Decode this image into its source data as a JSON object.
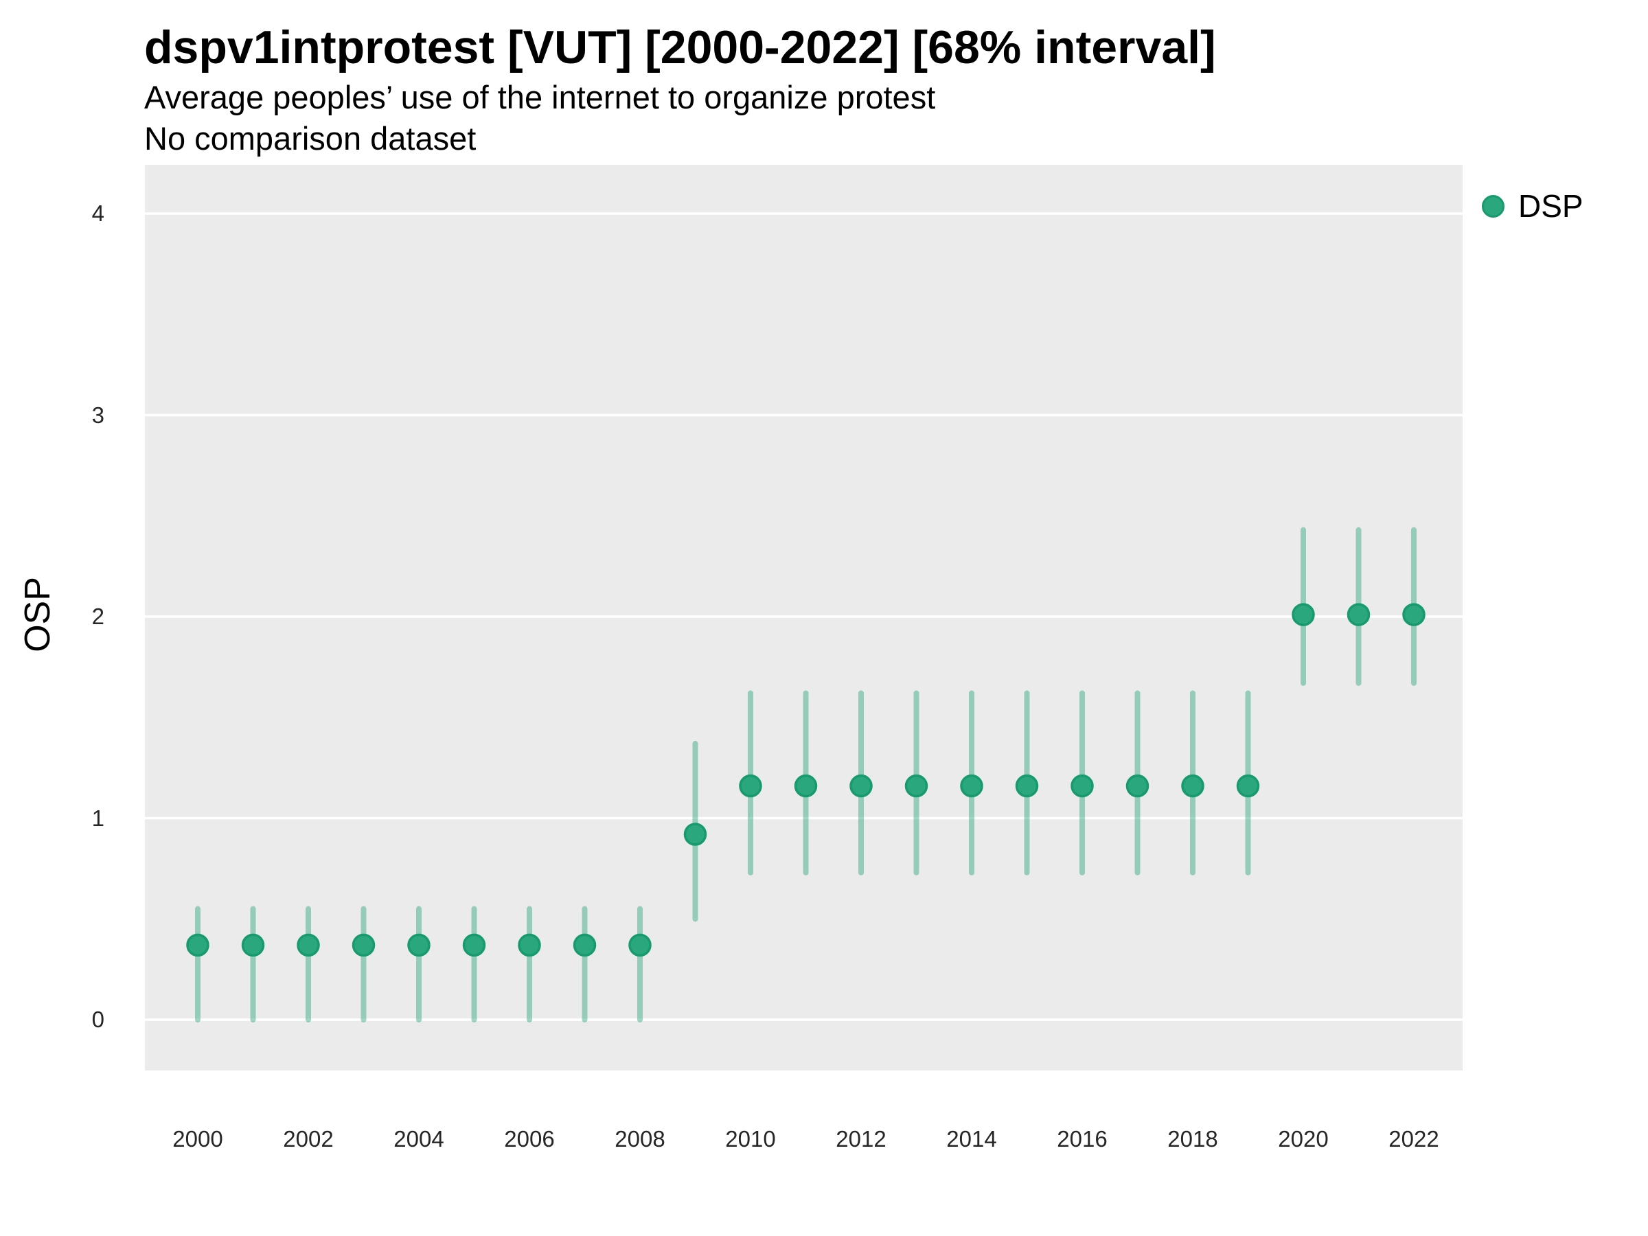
{
  "header": {
    "title": "dspv1intprotest [VUT] [2000-2022] [68% interval]",
    "subtitle": "Average peoples’ use of the internet to organize protest",
    "note": "No comparison dataset"
  },
  "axes": {
    "y_title": "OSP",
    "y_ticks": [
      "0",
      "1",
      "2",
      "3",
      "4"
    ],
    "x_ticks": [
      "2000",
      "2002",
      "2004",
      "2006",
      "2008",
      "2010",
      "2012",
      "2014",
      "2016",
      "2018",
      "2020",
      "2022"
    ]
  },
  "legend": {
    "items": [
      {
        "label": "DSP",
        "swatch": "circle-icon"
      }
    ]
  },
  "colors": {
    "point_fill": "#2AA77C",
    "point_stroke": "#189A6F",
    "interval_line": "rgba(42,167,124,0.45)",
    "panel_background": "#EBEBEB",
    "gridline": "#FFFFFF",
    "text": "#000000",
    "axis_text": "#262626"
  },
  "chart_data": {
    "type": "scatter",
    "mark": "pointrange",
    "title": "dspv1intprotest [VUT] [2000-2022] [68% interval]",
    "subtitle": "Average peoples’ use of the internet to organize protest",
    "annotation": "No comparison dataset",
    "xlabel": "",
    "ylabel": "OSP",
    "ylim": [
      -0.26,
      4.24
    ],
    "y_major_gridlines": [
      0,
      1,
      2,
      3,
      4
    ],
    "grid": "horizontal-major-white-on-gray",
    "legend_position": "right-top",
    "x": [
      2000,
      2001,
      2002,
      2003,
      2004,
      2005,
      2006,
      2007,
      2008,
      2009,
      2010,
      2011,
      2012,
      2013,
      2014,
      2015,
      2016,
      2017,
      2018,
      2019,
      2020,
      2021,
      2022
    ],
    "series": [
      {
        "name": "DSP",
        "estimate": [
          0.37,
          0.37,
          0.37,
          0.37,
          0.37,
          0.37,
          0.37,
          0.37,
          0.37,
          0.92,
          1.16,
          1.16,
          1.16,
          1.16,
          1.16,
          1.16,
          1.16,
          1.16,
          1.16,
          1.16,
          2.01,
          2.01,
          2.01
        ],
        "interval_68_low": [
          0.0,
          0.0,
          0.0,
          0.0,
          0.0,
          0.0,
          0.0,
          0.0,
          0.0,
          0.5,
          0.73,
          0.73,
          0.73,
          0.73,
          0.73,
          0.73,
          0.73,
          0.73,
          0.73,
          0.73,
          1.67,
          1.67,
          1.67
        ],
        "interval_68_high": [
          0.55,
          0.55,
          0.55,
          0.55,
          0.55,
          0.55,
          0.55,
          0.55,
          0.55,
          1.37,
          1.62,
          1.62,
          1.62,
          1.62,
          1.62,
          1.62,
          1.62,
          1.62,
          1.62,
          1.62,
          2.43,
          2.43,
          2.43
        ]
      }
    ]
  }
}
